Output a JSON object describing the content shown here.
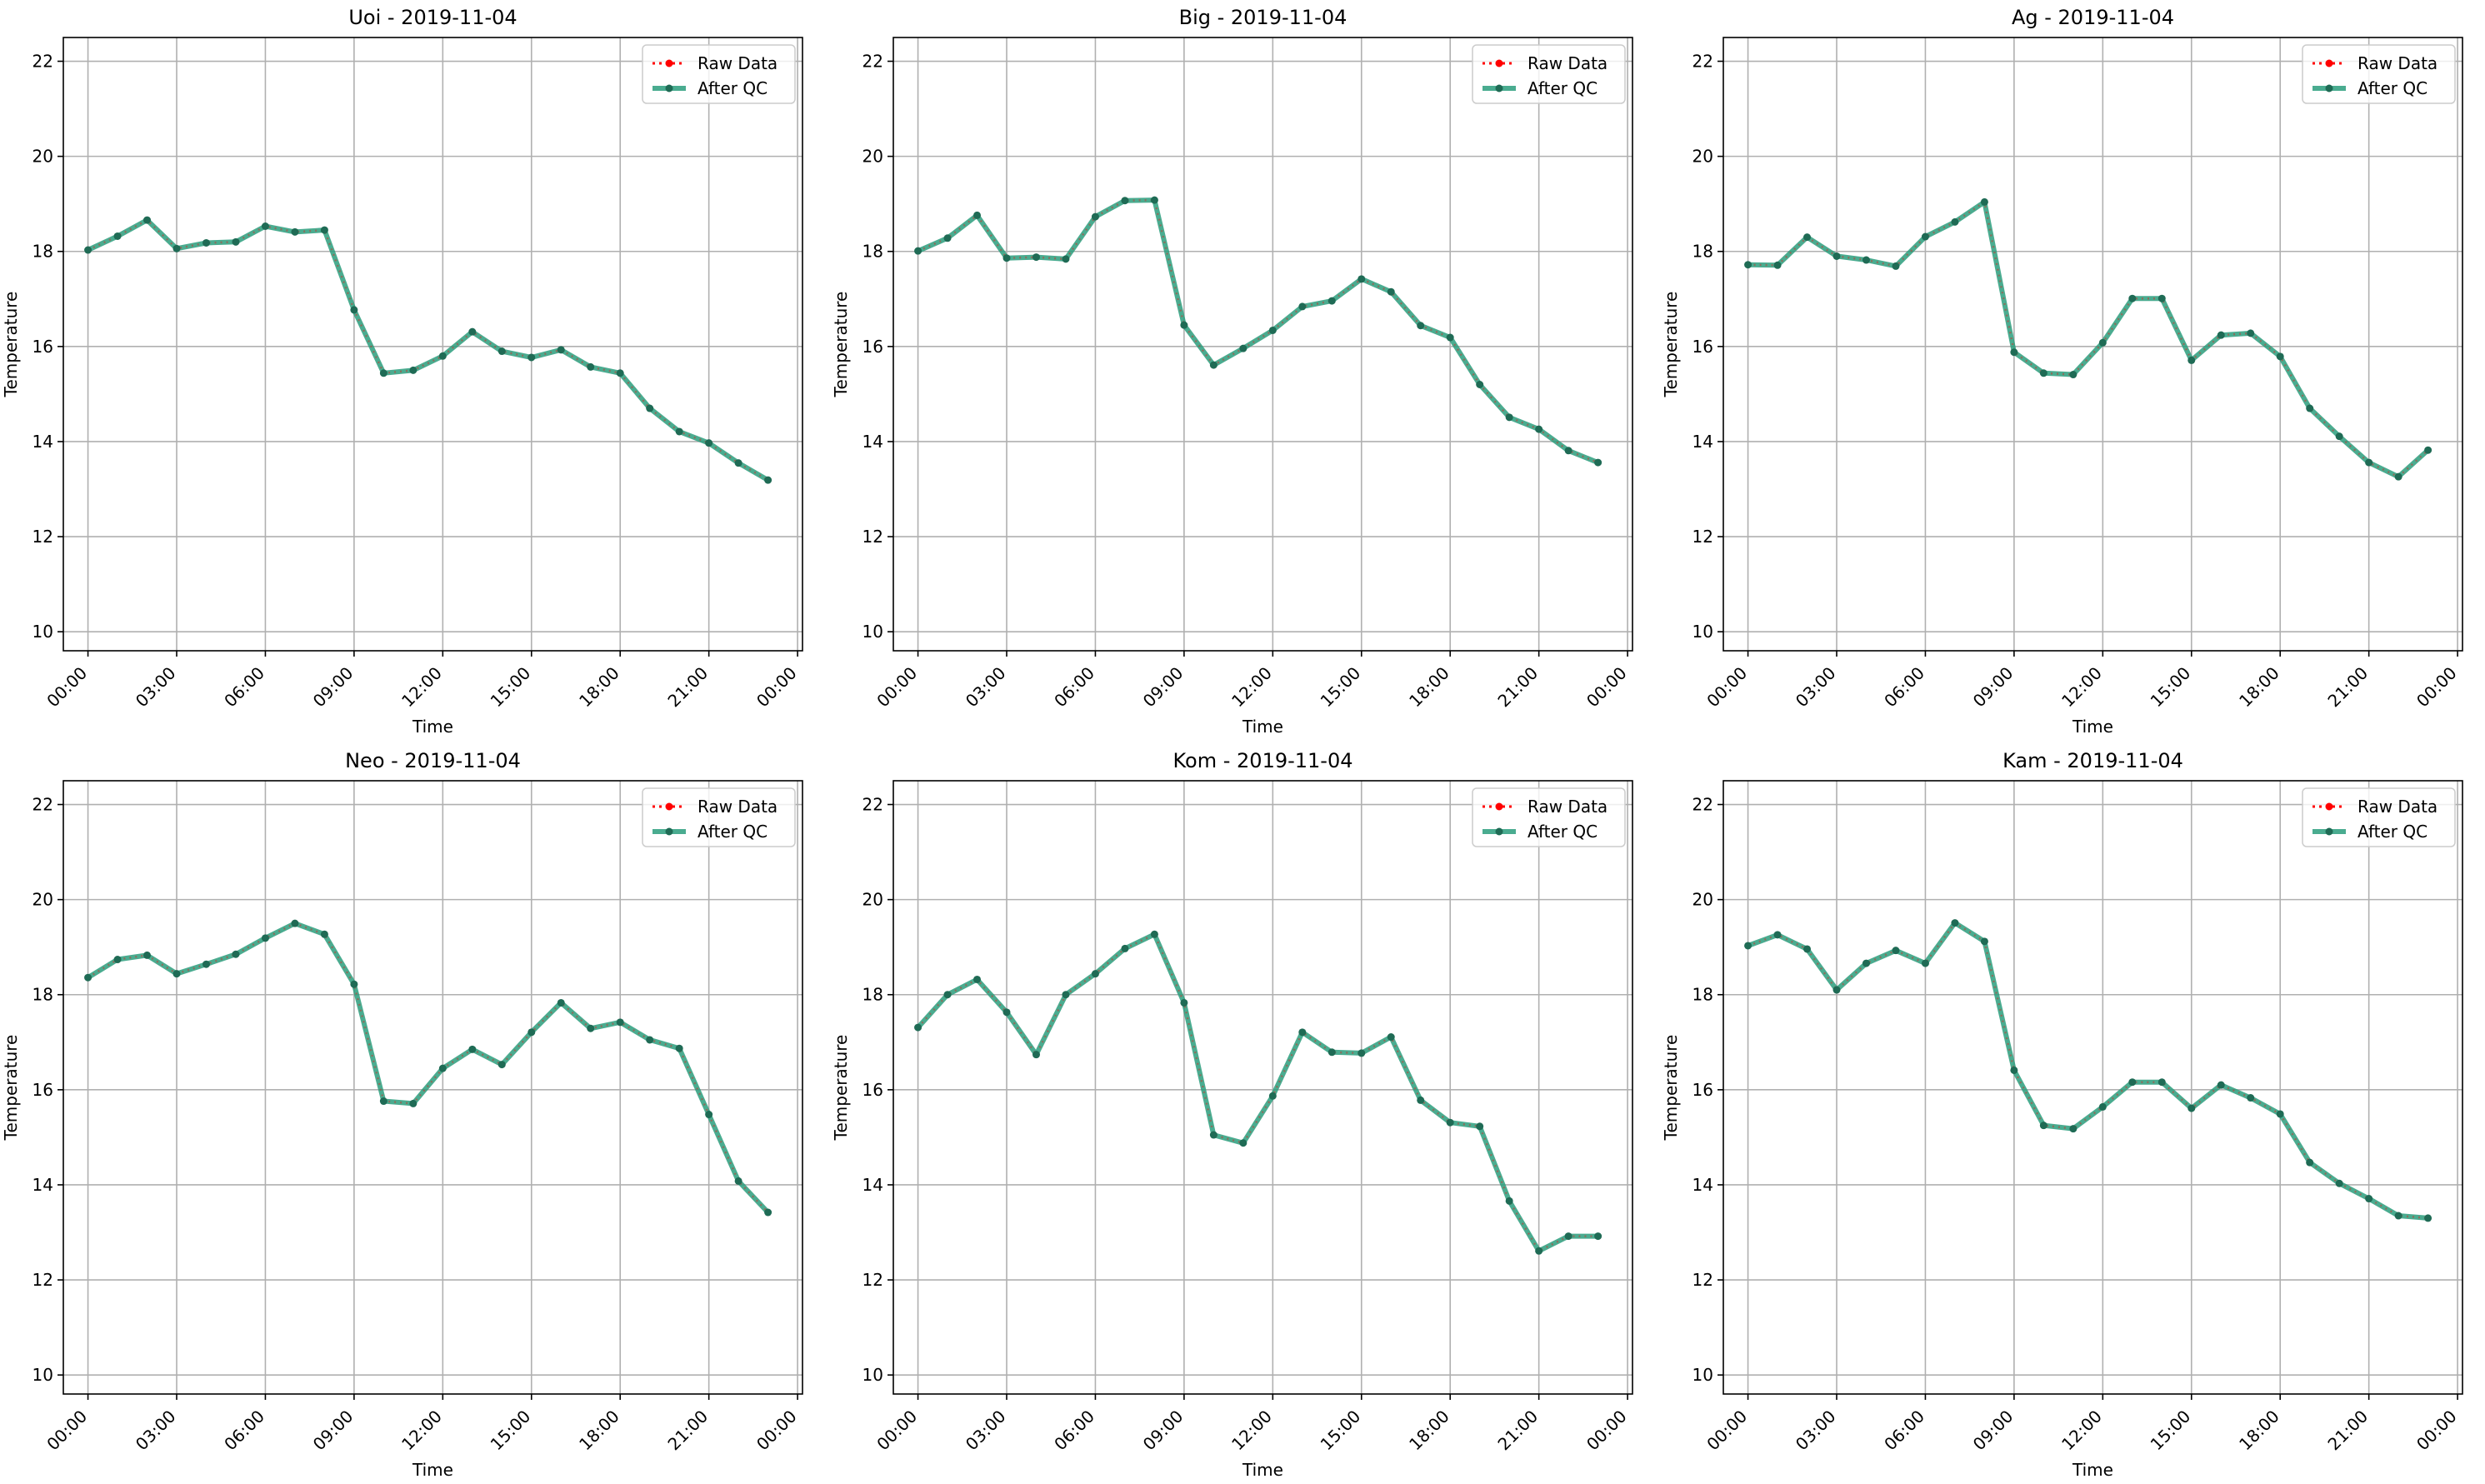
{
  "colors": {
    "raw": "#ff0000",
    "qc": "#2a9d7c",
    "qc_marker": "#1f6b55",
    "grid": "#b0b0b0"
  },
  "chart_data": [
    {
      "type": "line",
      "title": "Uoi - 2019-11-04",
      "xlabel": "Time",
      "ylabel": "Temperature",
      "ylim": [
        9.6,
        22.5
      ],
      "xlim": [
        "2019-11-03 23:10",
        "2019-11-05 00:10"
      ],
      "y_ticks": [
        10,
        12,
        14,
        16,
        18,
        20,
        22
      ],
      "x_ticks": [
        "00:00",
        "03:00",
        "06:00",
        "09:00",
        "12:00",
        "15:00",
        "18:00",
        "21:00",
        "00:00"
      ],
      "grid": true,
      "legend_position": "top-right",
      "x": [
        "00:00",
        "01:00",
        "02:00",
        "03:00",
        "04:00",
        "05:00",
        "06:00",
        "07:00",
        "08:00",
        "09:00",
        "10:00",
        "11:00",
        "12:00",
        "13:00",
        "14:00",
        "15:00",
        "16:00",
        "17:00",
        "18:00",
        "19:00",
        "20:00",
        "21:00",
        "22:00",
        "23:00"
      ],
      "series": [
        {
          "name": "Raw Data",
          "style": "dotted",
          "values": [
            18.03,
            18.32,
            18.66,
            18.06,
            18.18,
            18.2,
            18.53,
            18.41,
            18.45,
            16.77,
            15.44,
            15.5,
            15.8,
            16.31,
            15.9,
            15.77,
            15.93,
            15.57,
            15.44,
            14.7,
            14.21,
            13.97,
            13.55,
            13.19
          ]
        },
        {
          "name": "After QC",
          "style": "solid",
          "values": [
            18.03,
            18.32,
            18.66,
            18.06,
            18.18,
            18.2,
            18.53,
            18.41,
            18.45,
            16.77,
            15.44,
            15.5,
            15.8,
            16.31,
            15.9,
            15.77,
            15.93,
            15.57,
            15.44,
            14.7,
            14.21,
            13.97,
            13.55,
            13.19
          ]
        }
      ]
    },
    {
      "type": "line",
      "title": "Big - 2019-11-04",
      "xlabel": "Time",
      "ylabel": "Temperature",
      "ylim": [
        9.6,
        22.5
      ],
      "xlim": [
        "2019-11-03 23:10",
        "2019-11-05 00:10"
      ],
      "y_ticks": [
        10,
        12,
        14,
        16,
        18,
        20,
        22
      ],
      "x_ticks": [
        "00:00",
        "03:00",
        "06:00",
        "09:00",
        "12:00",
        "15:00",
        "18:00",
        "21:00",
        "00:00"
      ],
      "grid": true,
      "legend_position": "top-right",
      "x": [
        "00:00",
        "01:00",
        "02:00",
        "03:00",
        "04:00",
        "05:00",
        "06:00",
        "07:00",
        "08:00",
        "09:00",
        "10:00",
        "11:00",
        "12:00",
        "13:00",
        "14:00",
        "15:00",
        "16:00",
        "17:00",
        "18:00",
        "19:00",
        "20:00",
        "21:00",
        "22:00",
        "23:00"
      ],
      "series": [
        {
          "name": "Raw Data",
          "style": "dotted",
          "values": [
            18.01,
            18.28,
            18.76,
            17.86,
            17.88,
            17.84,
            18.73,
            19.07,
            19.08,
            16.45,
            15.61,
            15.96,
            16.34,
            16.84,
            16.96,
            17.42,
            17.15,
            16.44,
            16.19,
            15.2,
            14.51,
            14.26,
            13.81,
            13.56
          ]
        },
        {
          "name": "After QC",
          "style": "solid",
          "values": [
            18.01,
            18.28,
            18.76,
            17.86,
            17.88,
            17.84,
            18.73,
            19.07,
            19.08,
            16.45,
            15.61,
            15.96,
            16.34,
            16.84,
            16.96,
            17.42,
            17.15,
            16.44,
            16.19,
            15.2,
            14.51,
            14.26,
            13.81,
            13.56
          ]
        }
      ]
    },
    {
      "type": "line",
      "title": "Ag - 2019-11-04",
      "xlabel": "Time",
      "ylabel": "Temperature",
      "ylim": [
        9.6,
        22.5
      ],
      "xlim": [
        "2019-11-03 23:10",
        "2019-11-05 00:10"
      ],
      "y_ticks": [
        10,
        12,
        14,
        16,
        18,
        20,
        22
      ],
      "x_ticks": [
        "00:00",
        "03:00",
        "06:00",
        "09:00",
        "12:00",
        "15:00",
        "18:00",
        "21:00",
        "00:00"
      ],
      "grid": true,
      "legend_position": "top-right",
      "x": [
        "00:00",
        "01:00",
        "02:00",
        "03:00",
        "04:00",
        "05:00",
        "06:00",
        "07:00",
        "08:00",
        "09:00",
        "10:00",
        "11:00",
        "12:00",
        "13:00",
        "14:00",
        "15:00",
        "16:00",
        "17:00",
        "18:00",
        "19:00",
        "20:00",
        "21:00",
        "22:00",
        "23:00"
      ],
      "series": [
        {
          "name": "Raw Data",
          "style": "dotted",
          "values": [
            17.72,
            17.71,
            18.3,
            17.9,
            17.82,
            17.69,
            18.31,
            18.62,
            19.04,
            15.88,
            15.44,
            15.41,
            16.08,
            17.01,
            17.01,
            15.71,
            16.24,
            16.28,
            15.79,
            14.7,
            14.11,
            13.56,
            13.26,
            13.82
          ]
        },
        {
          "name": "After QC",
          "style": "solid",
          "values": [
            17.72,
            17.71,
            18.3,
            17.9,
            17.82,
            17.69,
            18.31,
            18.62,
            19.04,
            15.88,
            15.44,
            15.41,
            16.08,
            17.01,
            17.01,
            15.71,
            16.24,
            16.28,
            15.79,
            14.7,
            14.11,
            13.56,
            13.26,
            13.82
          ]
        }
      ]
    },
    {
      "type": "line",
      "title": "Neo - 2019-11-04",
      "xlabel": "Time",
      "ylabel": "Temperature",
      "ylim": [
        9.6,
        22.5
      ],
      "xlim": [
        "2019-11-03 23:10",
        "2019-11-05 00:10"
      ],
      "y_ticks": [
        10,
        12,
        14,
        16,
        18,
        20,
        22
      ],
      "x_ticks": [
        "00:00",
        "03:00",
        "06:00",
        "09:00",
        "12:00",
        "15:00",
        "18:00",
        "21:00",
        "00:00"
      ],
      "grid": true,
      "legend_position": "top-right",
      "x": [
        "00:00",
        "01:00",
        "02:00",
        "03:00",
        "04:00",
        "05:00",
        "06:00",
        "07:00",
        "08:00",
        "09:00",
        "10:00",
        "11:00",
        "12:00",
        "13:00",
        "14:00",
        "15:00",
        "16:00",
        "17:00",
        "18:00",
        "19:00",
        "20:00",
        "21:00",
        "22:00",
        "23:00"
      ],
      "series": [
        {
          "name": "Raw Data",
          "style": "dotted",
          "values": [
            18.36,
            18.74,
            18.83,
            18.44,
            18.64,
            18.85,
            19.19,
            19.5,
            19.27,
            18.22,
            15.76,
            15.71,
            16.45,
            16.85,
            16.53,
            17.21,
            17.83,
            17.29,
            17.42,
            17.05,
            16.87,
            15.48,
            14.08,
            13.42
          ]
        },
        {
          "name": "After QC",
          "style": "solid",
          "values": [
            18.36,
            18.74,
            18.83,
            18.44,
            18.64,
            18.85,
            19.19,
            19.5,
            19.27,
            18.22,
            15.76,
            15.71,
            16.45,
            16.85,
            16.53,
            17.21,
            17.83,
            17.29,
            17.42,
            17.05,
            16.87,
            15.48,
            14.08,
            13.42
          ]
        }
      ]
    },
    {
      "type": "line",
      "title": "Kom - 2019-11-04",
      "xlabel": "Time",
      "ylabel": "Temperature",
      "ylim": [
        9.6,
        22.5
      ],
      "xlim": [
        "2019-11-03 23:10",
        "2019-11-05 00:10"
      ],
      "y_ticks": [
        10,
        12,
        14,
        16,
        18,
        20,
        22
      ],
      "x_ticks": [
        "00:00",
        "03:00",
        "06:00",
        "09:00",
        "12:00",
        "15:00",
        "18:00",
        "21:00",
        "00:00"
      ],
      "grid": true,
      "legend_position": "top-right",
      "x": [
        "00:00",
        "01:00",
        "02:00",
        "03:00",
        "04:00",
        "05:00",
        "06:00",
        "07:00",
        "08:00",
        "09:00",
        "10:00",
        "11:00",
        "12:00",
        "13:00",
        "14:00",
        "15:00",
        "16:00",
        "17:00",
        "18:00",
        "19:00",
        "20:00",
        "21:00",
        "22:00",
        "23:00"
      ],
      "series": [
        {
          "name": "Raw Data",
          "style": "dotted",
          "values": [
            17.31,
            18.0,
            18.32,
            17.63,
            16.74,
            18.0,
            18.44,
            18.97,
            19.27,
            17.83,
            15.05,
            14.88,
            15.87,
            17.21,
            16.79,
            16.77,
            17.11,
            15.78,
            15.31,
            15.23,
            13.66,
            12.61,
            12.92,
            12.92
          ]
        },
        {
          "name": "After QC",
          "style": "solid",
          "values": [
            17.31,
            18.0,
            18.32,
            17.63,
            16.74,
            18.0,
            18.44,
            18.97,
            19.27,
            17.83,
            15.05,
            14.88,
            15.87,
            17.21,
            16.79,
            16.77,
            17.11,
            15.78,
            15.31,
            15.23,
            13.66,
            12.61,
            12.92,
            12.92
          ]
        }
      ]
    },
    {
      "type": "line",
      "title": "Kam - 2019-11-04",
      "xlabel": "Time",
      "ylabel": "Temperature",
      "ylim": [
        9.6,
        22.5
      ],
      "xlim": [
        "2019-11-03 23:10",
        "2019-11-05 00:10"
      ],
      "y_ticks": [
        10,
        12,
        14,
        16,
        18,
        20,
        22
      ],
      "x_ticks": [
        "00:00",
        "03:00",
        "06:00",
        "09:00",
        "12:00",
        "15:00",
        "18:00",
        "21:00",
        "00:00"
      ],
      "grid": true,
      "legend_position": "top-right",
      "x": [
        "00:00",
        "01:00",
        "02:00",
        "03:00",
        "04:00",
        "05:00",
        "06:00",
        "07:00",
        "08:00",
        "09:00",
        "10:00",
        "11:00",
        "12:00",
        "13:00",
        "14:00",
        "15:00",
        "16:00",
        "17:00",
        "18:00",
        "19:00",
        "20:00",
        "21:00",
        "22:00",
        "23:00"
      ],
      "series": [
        {
          "name": "Raw Data",
          "style": "dotted",
          "values": [
            19.03,
            19.26,
            18.96,
            18.1,
            18.66,
            18.93,
            18.66,
            19.51,
            19.12,
            16.41,
            15.25,
            15.18,
            15.64,
            16.16,
            16.16,
            15.61,
            16.1,
            15.83,
            15.49,
            14.47,
            14.03,
            13.71,
            13.35,
            13.3
          ]
        },
        {
          "name": "After QC",
          "style": "solid",
          "values": [
            19.03,
            19.26,
            18.96,
            18.1,
            18.66,
            18.93,
            18.66,
            19.51,
            19.12,
            16.41,
            15.25,
            15.18,
            15.64,
            16.16,
            16.16,
            15.61,
            16.1,
            15.83,
            15.49,
            14.47,
            14.03,
            13.71,
            13.35,
            13.3
          ]
        }
      ]
    }
  ]
}
